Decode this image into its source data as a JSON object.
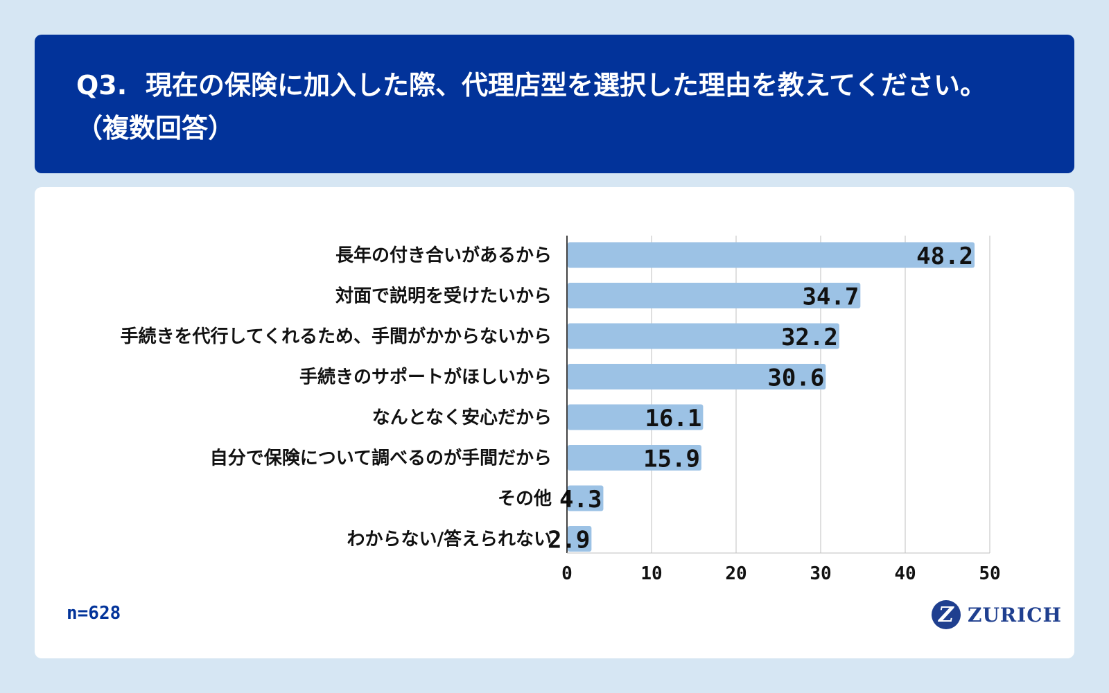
{
  "header": {
    "question_number": "Q3.",
    "question_text": "現在の保険に加入した際、代理店型を選択した理由を教えてください。",
    "question_note": "（複数回答）"
  },
  "sample_size": "n=628",
  "brand": {
    "logo_icon": "zurich-z-icon",
    "logo_letter": "Z",
    "name": "ZURICH"
  },
  "colors": {
    "header_bg": "#02339a",
    "page_bg": "#d6e6f3",
    "bar": "#9cc2e5",
    "grid": "#bfbfbf",
    "brand": "#1f3f8f"
  },
  "chart_data": {
    "type": "bar",
    "orientation": "horizontal",
    "categories": [
      "長年の付き合いがあるから",
      "対面で説明を受けたいから",
      "手続きを代行してくれるため、手間がかからないから",
      "手続きのサポートがほしいから",
      "なんとなく安心だから",
      "自分で保険について調べるのが手間だから",
      "その他",
      "わからない/答えられない"
    ],
    "values": [
      48.2,
      34.7,
      32.2,
      30.6,
      16.1,
      15.9,
      4.3,
      2.9
    ],
    "value_labels": [
      "48.2",
      "34.7",
      "32.2",
      "30.6",
      "16.1",
      "15.9",
      "4.3",
      "2.9"
    ],
    "xlim": [
      0,
      50
    ],
    "xticks": [
      "0",
      "10",
      "20",
      "30",
      "40",
      "50"
    ],
    "grid": true,
    "title": "",
    "xlabel": "",
    "ylabel": ""
  }
}
